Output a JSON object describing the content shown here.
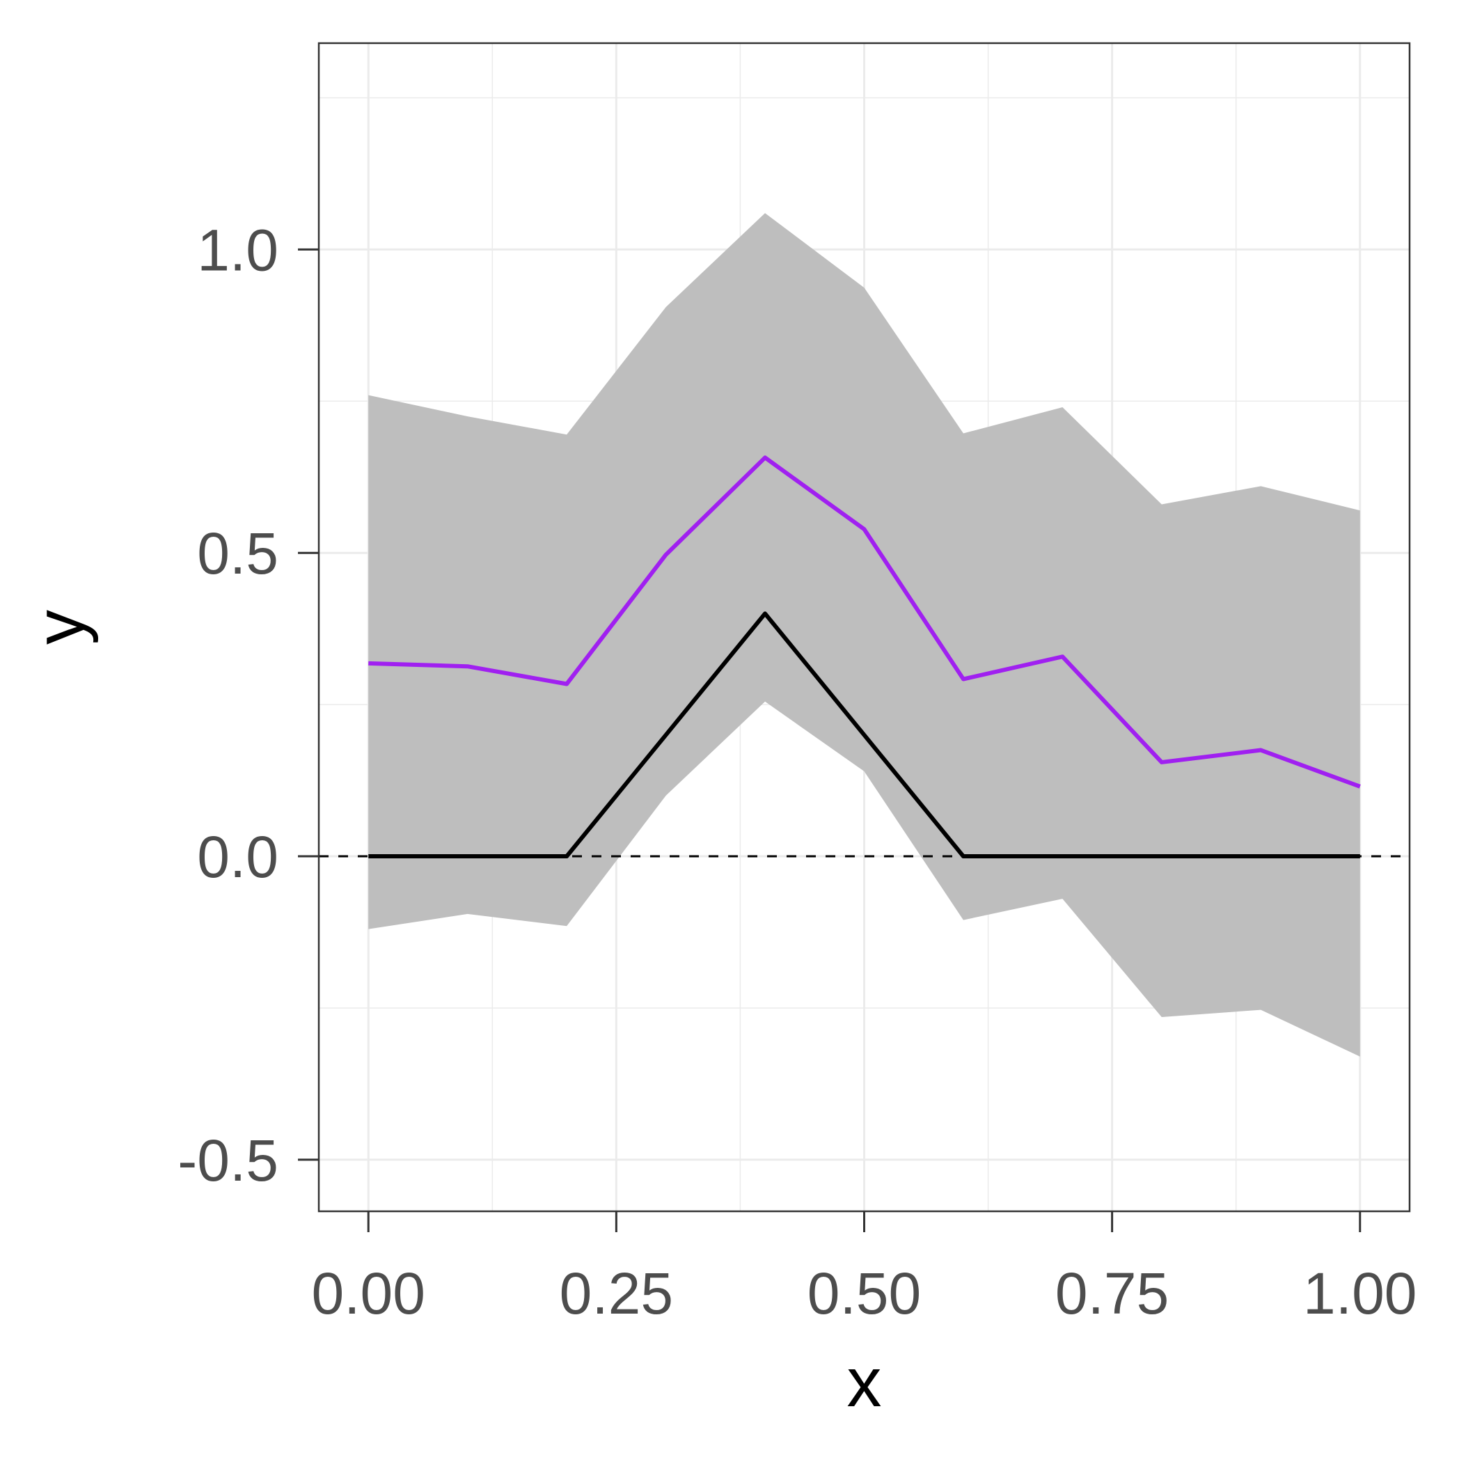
{
  "chart_data": {
    "type": "line",
    "xlabel": "x",
    "ylabel": "y",
    "xlim": [
      -0.05,
      1.05
    ],
    "ylim": [
      -0.585,
      1.34
    ],
    "x_ticks": [
      {
        "value": 0.0,
        "label": "0.00"
      },
      {
        "value": 0.25,
        "label": "0.25"
      },
      {
        "value": 0.5,
        "label": "0.50"
      },
      {
        "value": 0.75,
        "label": "0.75"
      },
      {
        "value": 1.0,
        "label": "1.00"
      }
    ],
    "y_ticks": [
      {
        "value": -0.5,
        "label": "-0.5"
      },
      {
        "value": 0.0,
        "label": "0.0"
      },
      {
        "value": 0.5,
        "label": "0.5"
      },
      {
        "value": 1.0,
        "label": "1.0"
      }
    ],
    "x_minor": [
      0.125,
      0.375,
      0.625,
      0.875
    ],
    "y_minor": [
      -0.25,
      0.25,
      0.75,
      1.25
    ],
    "grid": true,
    "x": [
      0.0,
      0.1,
      0.2,
      0.3,
      0.4,
      0.5,
      0.6,
      0.7,
      0.8,
      0.9,
      1.0
    ],
    "band": {
      "lower": [
        -0.12,
        -0.095,
        -0.115,
        0.1,
        0.255,
        0.14,
        -0.105,
        -0.07,
        -0.265,
        -0.253,
        -0.33
      ],
      "upper": [
        0.76,
        0.725,
        0.695,
        0.905,
        1.06,
        0.937,
        0.697,
        0.74,
        0.58,
        0.61,
        0.57
      ],
      "color": "#bebebe"
    },
    "series": [
      {
        "values": [
          0.318,
          0.313,
          0.284,
          0.497,
          0.657,
          0.539,
          0.292,
          0.329,
          0.155,
          0.175,
          0.115
        ],
        "color": "#a020f0"
      },
      {
        "values": [
          0.0,
          0.0,
          0.0,
          0.2,
          0.4,
          0.2,
          0.0,
          0.0,
          0.0,
          0.0,
          0.0
        ],
        "color": "#000000"
      }
    ],
    "reference_line": {
      "y": 0.0,
      "style": "dashed",
      "color": "#000000"
    }
  }
}
